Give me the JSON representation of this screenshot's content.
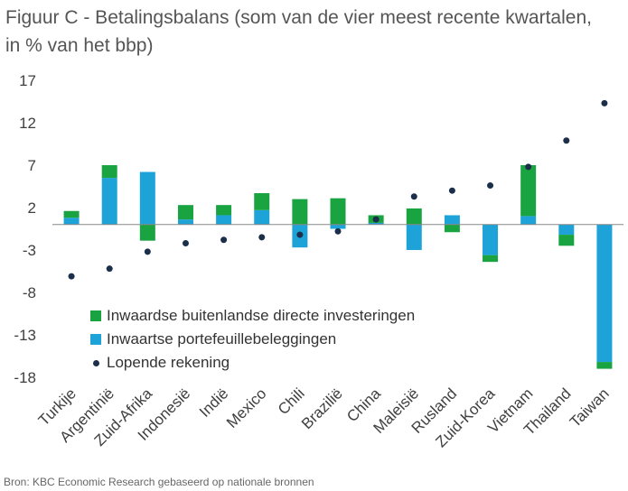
{
  "title_line1": "Figuur C - Betalingsbalans (som van de vier meest recente kwartalen,",
  "title_line2": "in % van het bbp)",
  "source": "Bron: KBC Economic Research gebaseerd op nationale bronnen",
  "colors": {
    "fdi": "#1aa341",
    "portfolio": "#1ea3d9",
    "current_account": "#1b2f4a",
    "axis_text": "#404040",
    "zero_line": "#888888"
  },
  "chart_data": {
    "type": "bar",
    "stacked": true,
    "title": "Figuur C - Betalingsbalans (som van de vier meest recente kwartalen, in % van het bbp)",
    "xlabel": "",
    "ylabel": "",
    "ylim": [
      -18,
      17
    ],
    "yticks": [
      17,
      12,
      7,
      2,
      -3,
      -8,
      -13,
      -18
    ],
    "grid": false,
    "legend_position": "bottom-left",
    "categories": [
      "Turkije",
      "Argentinië",
      "Zuid-Afrika",
      "Indonesië",
      "Indië",
      "Mexico",
      "Chili",
      "Brazilië",
      "China",
      "Maleisië",
      "Rusland",
      "Zuid-Korea",
      "Vietnam",
      "Thailand",
      "Taiwan"
    ],
    "series": [
      {
        "name": "Inwaardse buitenlandse directe investeringen",
        "kind": "bar",
        "values": [
          0.8,
          1.5,
          -1.9,
          1.7,
          1.2,
          2.0,
          3.0,
          3.1,
          0.9,
          1.9,
          -0.9,
          -0.8,
          6.0,
          -1.3,
          -0.8
        ]
      },
      {
        "name": "Inwaartse portefeuillebeleggingen",
        "kind": "bar",
        "values": [
          0.8,
          5.5,
          6.2,
          0.6,
          1.1,
          1.7,
          -2.7,
          -0.5,
          0.2,
          -3.0,
          1.1,
          -3.6,
          1.0,
          -1.2,
          -16.2
        ]
      },
      {
        "name": "Lopende rekening",
        "kind": "dot",
        "values": [
          -6.1,
          -5.2,
          -3.2,
          -2.2,
          -1.8,
          -1.5,
          -1.2,
          -0.8,
          0.6,
          3.3,
          4.0,
          4.6,
          6.8,
          9.9,
          14.3
        ]
      }
    ]
  }
}
